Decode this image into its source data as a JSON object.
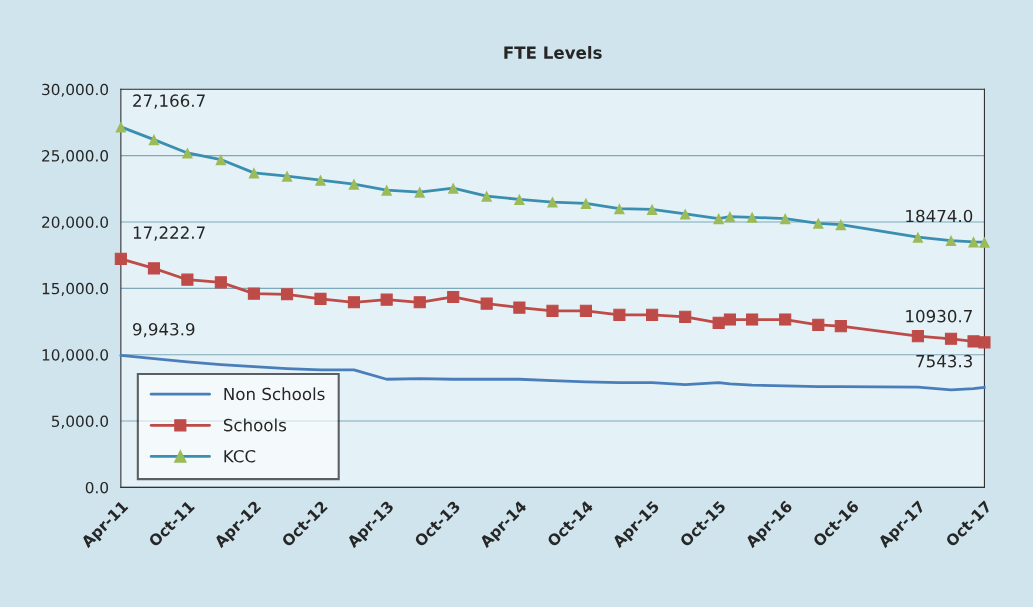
{
  "chart_data": {
    "type": "line",
    "title": "FTE Levels",
    "x": [
      "2011-04",
      "2011-07",
      "2011-10",
      "2012-01",
      "2012-04",
      "2012-07",
      "2012-10",
      "2013-01",
      "2013-04",
      "2013-07",
      "2013-10",
      "2014-01",
      "2014-04",
      "2014-07",
      "2014-10",
      "2015-01",
      "2015-04",
      "2015-07",
      "2015-10",
      "2015-11",
      "2016-01",
      "2016-04",
      "2016-07",
      "2016-09",
      "2017-04",
      "2017-07",
      "2017-09",
      "2017-10"
    ],
    "series": [
      {
        "name": "Non Schools",
        "color": "#4a7ebb",
        "marker": "none",
        "values": [
          9943.9,
          9700,
          9450,
          9250,
          9100,
          8950,
          8850,
          8850,
          8150,
          8200,
          8150,
          8150,
          8150,
          8050,
          7950,
          7900,
          7900,
          7750,
          7900,
          7800,
          7700,
          7650,
          7600,
          7600,
          7550,
          7350,
          7450,
          7543.3
        ]
      },
      {
        "name": "Schools",
        "color": "#be4b48",
        "marker": "square",
        "values": [
          17222.7,
          16500,
          15650,
          15450,
          14600,
          14550,
          14200,
          13950,
          14150,
          13950,
          14350,
          13850,
          13550,
          13300,
          13300,
          13000,
          13000,
          12850,
          12400,
          12650,
          12650,
          12650,
          12250,
          12150,
          11400,
          11200,
          11000,
          10930.7
        ]
      },
      {
        "name": "KCC",
        "color": "#3a8fb0",
        "colors": [
          "#9bbb59",
          "#9bbb59",
          "#9bbb59",
          "#9bbb59",
          "#9bbb59",
          "#9bbb59",
          "#9bbb59",
          "#9bbb59",
          "#9bbb59",
          "#9bbb59",
          "#9bbb59",
          "#9bbb59",
          "#9bbb59",
          "#9bbb59",
          "#9bbb59",
          "#9bbb59",
          "#9bbb59",
          "#9bbb59",
          "#9bbb59",
          "#9bbb59",
          "#9bbb59",
          "#9bbb59",
          "#9bbb59",
          "#9bbb59",
          "#9bbb59",
          "#9bbb59",
          "#9bbb59",
          "#9bbb59"
        ],
        "marker": "triangle",
        "values": [
          27166.7,
          26200,
          25200,
          24700,
          23700,
          23450,
          23150,
          22850,
          22400,
          22250,
          22550,
          21950,
          21700,
          21500,
          21400,
          21000,
          20950,
          20600,
          20250,
          20400,
          20350,
          20250,
          19900,
          19800,
          18850,
          18600,
          18500,
          18474.0
        ]
      }
    ],
    "xlim": [
      "2011-04",
      "2017-10"
    ],
    "xticks": [
      {
        "value": "2011-04",
        "label": "Apr-11"
      },
      {
        "value": "2011-10",
        "label": "Oct-11"
      },
      {
        "value": "2012-04",
        "label": "Apr-12"
      },
      {
        "value": "2012-10",
        "label": "Oct-12"
      },
      {
        "value": "2013-04",
        "label": "Apr-13"
      },
      {
        "value": "2013-10",
        "label": "Oct-13"
      },
      {
        "value": "2014-04",
        "label": "Apr-14"
      },
      {
        "value": "2014-10",
        "label": "Oct-14"
      },
      {
        "value": "2015-04",
        "label": "Apr-15"
      },
      {
        "value": "2015-10",
        "label": "Oct-15"
      },
      {
        "value": "2016-04",
        "label": "Apr-16"
      },
      {
        "value": "2016-10",
        "label": "Oct-16"
      },
      {
        "value": "2017-04",
        "label": "Apr-17"
      },
      {
        "value": "2017-10",
        "label": "Oct-17"
      }
    ],
    "ylim": [
      0,
      30000
    ],
    "yticks": [
      {
        "value": 0,
        "label": "0.0"
      },
      {
        "value": 5000,
        "label": "5,000.0"
      },
      {
        "value": 10000,
        "label": "10,000.0"
      },
      {
        "value": 15000,
        "label": "15,000.0"
      },
      {
        "value": 20000,
        "label": "20,000.0"
      },
      {
        "value": 25000,
        "label": "25,000.0"
      },
      {
        "value": 30000,
        "label": "30,000.0"
      }
    ],
    "grid": "y",
    "legend": "bottom left",
    "annotations": [
      {
        "text": "27,166.7",
        "x": "2011-04",
        "y": 27166.7
      },
      {
        "text": "17,222.7",
        "x": "2011-04",
        "y": 17222.7
      },
      {
        "text": "9,943.9",
        "x": "2011-04",
        "y": 9943.9
      },
      {
        "text": "18474.0",
        "x": "2017-10",
        "y": 18474.0
      },
      {
        "text": "10930.7",
        "x": "2017-10",
        "y": 10930.7
      },
      {
        "text": "7543.3",
        "x": "2017-10",
        "y": 7543.3
      }
    ]
  }
}
